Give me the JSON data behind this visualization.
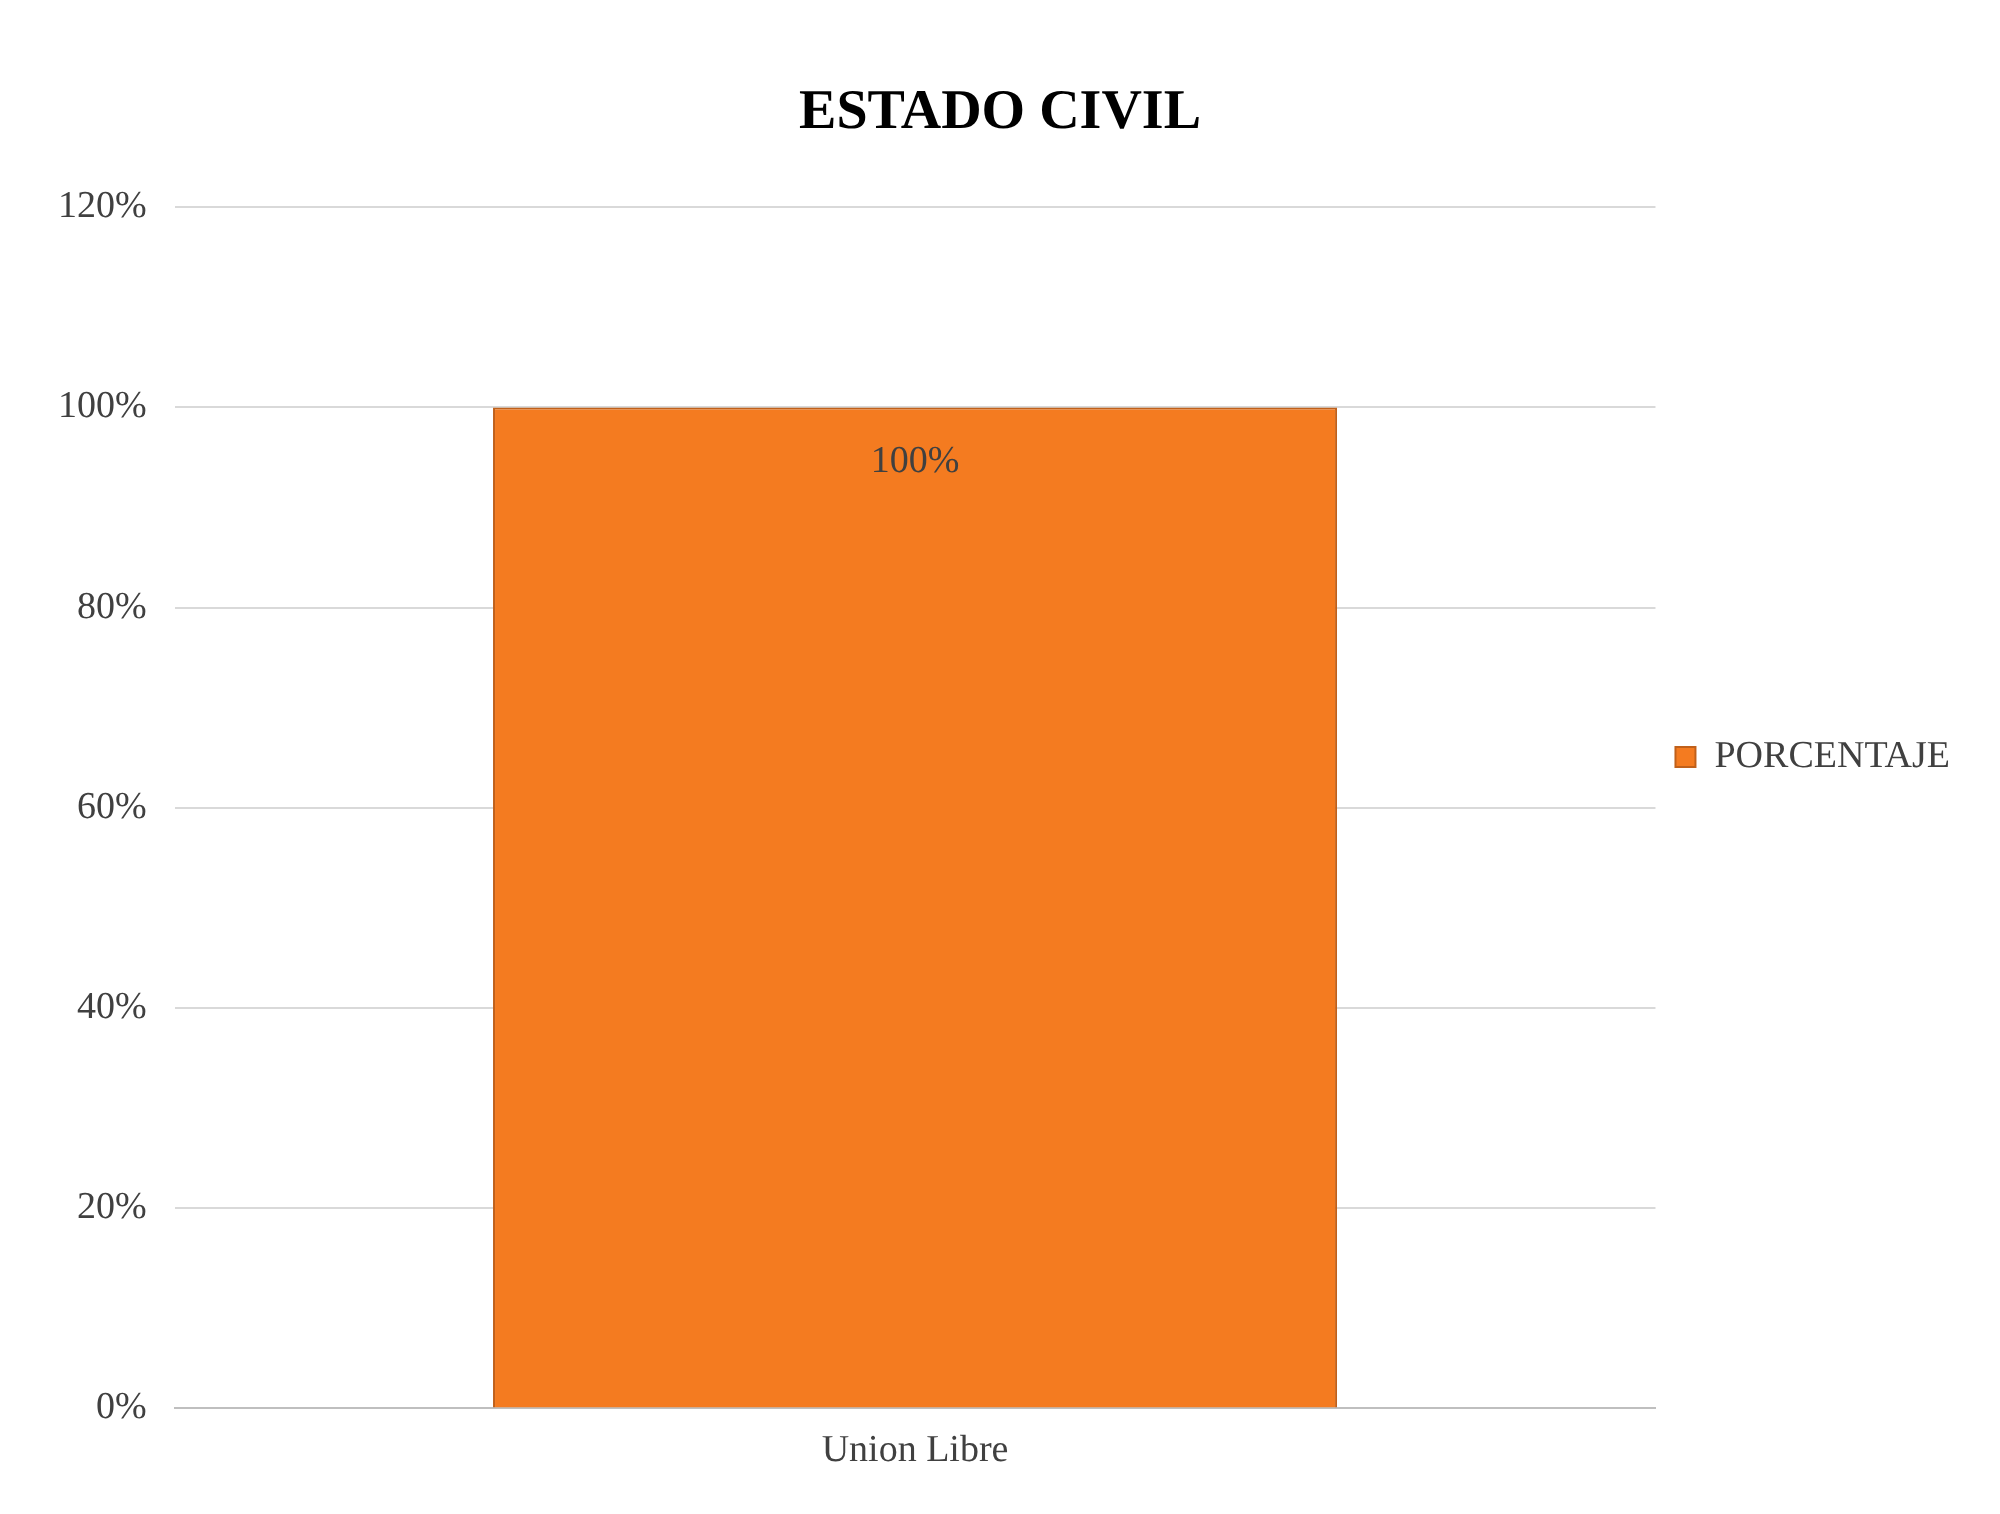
{
  "chart_data": {
    "type": "bar",
    "title": "ESTADO CIVIL",
    "categories": [
      "Union Libre"
    ],
    "series": [
      {
        "name": "PORCENTAJE",
        "color": "#f47b20",
        "values": [
          100
        ],
        "value_labels": [
          "100%"
        ]
      }
    ],
    "ylim": [
      0,
      120
    ],
    "yticks": [
      {
        "value": 0,
        "label": "0%"
      },
      {
        "value": 20,
        "label": "20%"
      },
      {
        "value": 40,
        "label": "40%"
      },
      {
        "value": 60,
        "label": "60%"
      },
      {
        "value": 80,
        "label": "80%"
      },
      {
        "value": 100,
        "label": "100%"
      },
      {
        "value": 120,
        "label": "120%"
      }
    ],
    "grid": "y",
    "legend": "right"
  }
}
